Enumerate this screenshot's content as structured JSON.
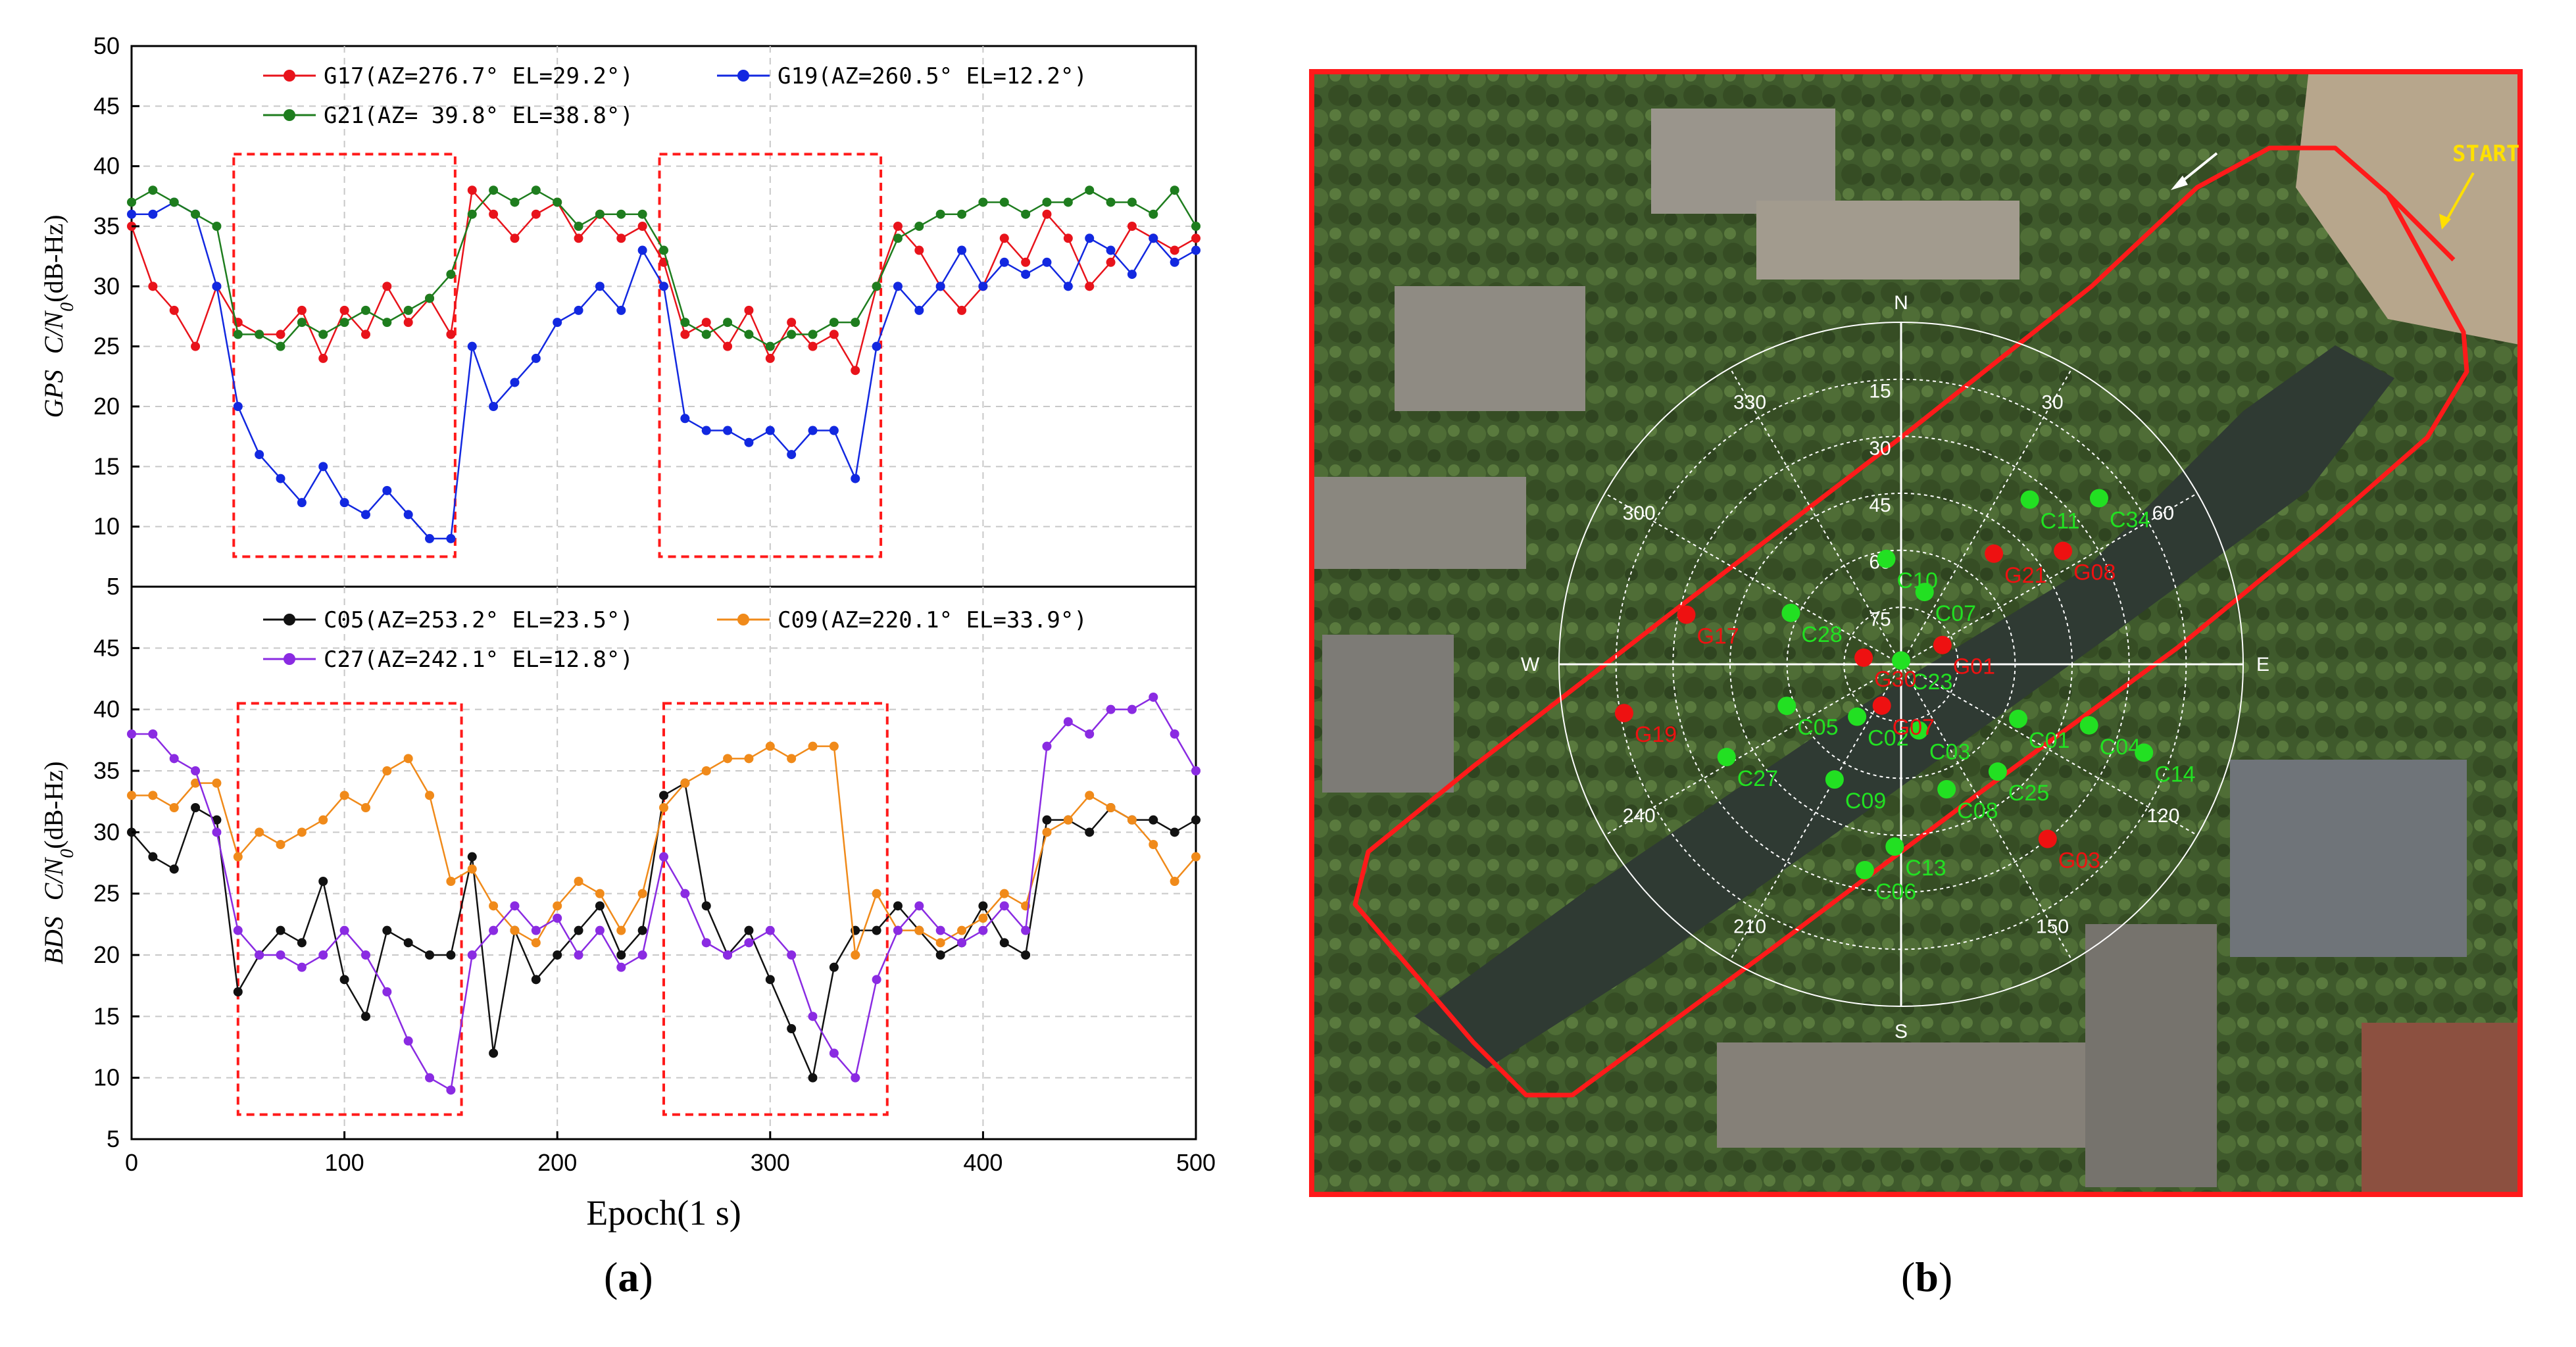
{
  "chart_data": [
    {
      "type": "line",
      "panel": "top",
      "ylabel": "GPS C/N0(dB-Hz)",
      "ylabel_parts": [
        "GPS",
        "C/N",
        "0",
        "(dB-Hz)"
      ],
      "ylim": [
        5,
        50
      ],
      "yticks": [
        5,
        10,
        15,
        20,
        25,
        30,
        35,
        40,
        45,
        50
      ],
      "xlim": [
        0,
        500
      ],
      "legend": "top",
      "highlight_boxes": [
        [
          48,
          152,
          7.5,
          41
        ],
        [
          248,
          352,
          7.5,
          41
        ]
      ],
      "series": [
        {
          "name": "G17(AZ=276.7° EL=29.2°)",
          "color": "#e8131b",
          "x": [
            0,
            10,
            20,
            30,
            40,
            50,
            60,
            70,
            80,
            90,
            100,
            110,
            120,
            130,
            140,
            150,
            160,
            170,
            180,
            190,
            200,
            210,
            220,
            230,
            240,
            250,
            260,
            270,
            280,
            290,
            300,
            310,
            320,
            330,
            340,
            350,
            360,
            370,
            380,
            390,
            400,
            410,
            420,
            430,
            440,
            450,
            460,
            470,
            480,
            490,
            500
          ],
          "values": [
            35,
            30,
            28,
            25,
            30,
            27,
            26,
            26,
            28,
            24,
            28,
            26,
            30,
            27,
            29,
            26,
            38,
            36,
            34,
            36,
            37,
            34,
            36,
            34,
            35,
            32,
            26,
            27,
            25,
            28,
            24,
            27,
            25,
            26,
            23,
            30,
            35,
            33,
            30,
            28,
            30,
            34,
            32,
            36,
            34,
            30,
            32,
            35,
            34,
            33,
            34
          ]
        },
        {
          "name": "G19(AZ=260.5° EL=12.2°)",
          "color": "#1228e0",
          "x": [
            0,
            10,
            20,
            30,
            40,
            50,
            60,
            70,
            80,
            90,
            100,
            110,
            120,
            130,
            140,
            150,
            160,
            170,
            180,
            190,
            200,
            210,
            220,
            230,
            240,
            250,
            260,
            270,
            280,
            290,
            300,
            310,
            320,
            330,
            340,
            350,
            360,
            370,
            380,
            390,
            400,
            410,
            420,
            430,
            440,
            450,
            460,
            470,
            480,
            490,
            500
          ],
          "values": [
            36,
            36,
            37,
            36,
            30,
            20,
            16,
            14,
            12,
            15,
            12,
            11,
            13,
            11,
            9,
            9,
            25,
            20,
            22,
            24,
            27,
            28,
            30,
            28,
            33,
            30,
            19,
            18,
            18,
            17,
            18,
            16,
            18,
            18,
            14,
            25,
            30,
            28,
            30,
            33,
            30,
            32,
            31,
            32,
            30,
            34,
            33,
            31,
            34,
            32,
            33
          ]
        },
        {
          "name": "G21(AZ= 39.8° EL=38.8°)",
          "color": "#1e7d1e",
          "x": [
            0,
            10,
            20,
            30,
            40,
            50,
            60,
            70,
            80,
            90,
            100,
            110,
            120,
            130,
            140,
            150,
            160,
            170,
            180,
            190,
            200,
            210,
            220,
            230,
            240,
            250,
            260,
            270,
            280,
            290,
            300,
            310,
            320,
            330,
            340,
            350,
            360,
            370,
            380,
            390,
            400,
            410,
            420,
            430,
            440,
            450,
            460,
            470,
            480,
            490,
            500
          ],
          "values": [
            37,
            38,
            37,
            36,
            35,
            26,
            26,
            25,
            27,
            26,
            27,
            28,
            27,
            28,
            29,
            31,
            36,
            38,
            37,
            38,
            37,
            35,
            36,
            36,
            36,
            33,
            27,
            26,
            27,
            26,
            25,
            26,
            26,
            27,
            27,
            30,
            34,
            35,
            36,
            36,
            37,
            37,
            36,
            37,
            37,
            38,
            37,
            37,
            36,
            38,
            35
          ]
        }
      ]
    },
    {
      "type": "line",
      "panel": "bottom",
      "ylabel": "BDS C/N0(dB-Hz)",
      "ylabel_parts": [
        "BDS",
        "C/N",
        "0",
        "(dB-Hz)"
      ],
      "ylim": [
        5,
        50
      ],
      "yticks": [
        5,
        10,
        15,
        20,
        25,
        30,
        35,
        40,
        45
      ],
      "xlim": [
        0,
        500
      ],
      "xticks": [
        0,
        100,
        200,
        300,
        400,
        500
      ],
      "xlabel": "Epoch(1 s)",
      "legend": "top",
      "highlight_boxes": [
        [
          50,
          155,
          7,
          40.5
        ],
        [
          250,
          355,
          7,
          40.5
        ]
      ],
      "series": [
        {
          "name": "C05(AZ=253.2° EL=23.5°)",
          "color": "#111111",
          "x": [
            0,
            10,
            20,
            30,
            40,
            50,
            60,
            70,
            80,
            90,
            100,
            110,
            120,
            130,
            140,
            150,
            160,
            170,
            180,
            190,
            200,
            210,
            220,
            230,
            240,
            250,
            260,
            270,
            280,
            290,
            300,
            310,
            320,
            330,
            340,
            350,
            360,
            370,
            380,
            390,
            400,
            410,
            420,
            430,
            440,
            450,
            460,
            470,
            480,
            490,
            500
          ],
          "values": [
            30,
            28,
            27,
            32,
            31,
            17,
            20,
            22,
            21,
            26,
            18,
            15,
            22,
            21,
            20,
            20,
            28,
            12,
            22,
            18,
            20,
            22,
            24,
            20,
            22,
            33,
            34,
            24,
            20,
            22,
            18,
            14,
            10,
            19,
            22,
            22,
            24,
            22,
            20,
            21,
            24,
            21,
            20,
            31,
            31,
            30,
            32,
            31,
            31,
            30,
            31
          ]
        },
        {
          "name": "C09(AZ=220.1° EL=33.9°)",
          "color": "#f08a1a",
          "x": [
            0,
            10,
            20,
            30,
            40,
            50,
            60,
            70,
            80,
            90,
            100,
            110,
            120,
            130,
            140,
            150,
            160,
            170,
            180,
            190,
            200,
            210,
            220,
            230,
            240,
            250,
            260,
            270,
            280,
            290,
            300,
            310,
            320,
            330,
            340,
            350,
            360,
            370,
            380,
            390,
            400,
            410,
            420,
            430,
            440,
            450,
            460,
            470,
            480,
            490,
            500
          ],
          "values": [
            33,
            33,
            32,
            34,
            34,
            28,
            30,
            29,
            30,
            31,
            33,
            32,
            35,
            36,
            33,
            26,
            27,
            24,
            22,
            21,
            24,
            26,
            25,
            22,
            25,
            32,
            34,
            35,
            36,
            36,
            37,
            36,
            37,
            37,
            20,
            25,
            22,
            22,
            21,
            22,
            23,
            25,
            24,
            30,
            31,
            33,
            32,
            31,
            29,
            26,
            28
          ]
        },
        {
          "name": "C27(AZ=242.1° EL=12.8°)",
          "color": "#8a2be2",
          "x": [
            0,
            10,
            20,
            30,
            40,
            50,
            60,
            70,
            80,
            90,
            100,
            110,
            120,
            130,
            140,
            150,
            160,
            170,
            180,
            190,
            200,
            210,
            220,
            230,
            240,
            250,
            260,
            270,
            280,
            290,
            300,
            310,
            320,
            330,
            340,
            350,
            360,
            370,
            380,
            390,
            400,
            410,
            420,
            430,
            440,
            450,
            460,
            470,
            480,
            490,
            500
          ],
          "values": [
            38,
            38,
            36,
            35,
            30,
            22,
            20,
            20,
            19,
            20,
            22,
            20,
            17,
            13,
            10,
            9,
            20,
            22,
            24,
            22,
            23,
            20,
            22,
            19,
            20,
            28,
            25,
            21,
            20,
            21,
            22,
            20,
            15,
            12,
            10,
            18,
            22,
            24,
            22,
            21,
            22,
            24,
            22,
            37,
            39,
            38,
            40,
            40,
            41,
            38,
            35
          ]
        }
      ]
    }
  ],
  "figure_b": {
    "labels": {
      "north": "N",
      "south": "S",
      "east": "E",
      "west": "W",
      "start": "START"
    },
    "elevation_rings": [
      "15",
      "30",
      "45",
      "60",
      "75"
    ],
    "azimuth_labels": [
      "30",
      "60",
      "120",
      "150",
      "210",
      "240",
      "300",
      "330"
    ],
    "satellites_bds": [
      "C11",
      "C34",
      "C10",
      "C07",
      "C28",
      "C23",
      "C05",
      "C02",
      "C03",
      "C01",
      "C04",
      "C14",
      "C27",
      "C09",
      "C08",
      "C25",
      "C06",
      "C13"
    ],
    "satellites_gps": [
      "G08",
      "G21",
      "G17",
      "G01",
      "G30",
      "G19",
      "G07",
      "G03"
    ],
    "colors": {
      "bds": "#22e022",
      "gps": "#ee1111",
      "track": "#ff1a1a",
      "start": "#ffe000"
    }
  },
  "captions": {
    "a": "a",
    "b": "b"
  }
}
